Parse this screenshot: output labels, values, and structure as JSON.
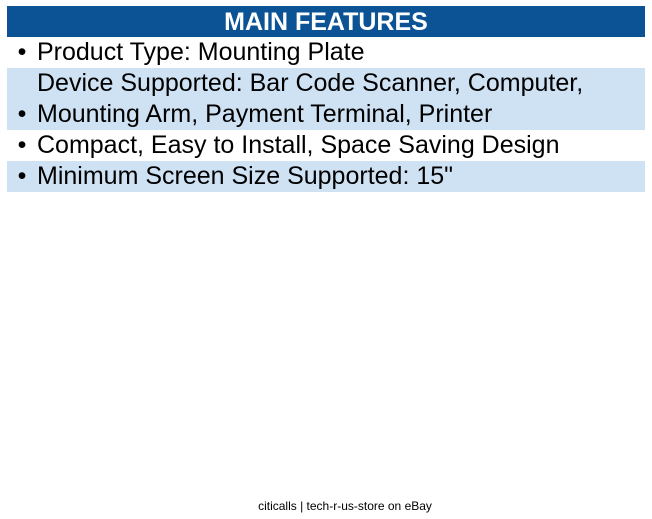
{
  "header": {
    "title": "MAIN FEATURES"
  },
  "features": [
    {
      "bullet": "•",
      "lines": [
        "Product Type: Mounting Plate"
      ]
    },
    {
      "bullet": "•",
      "lines": [
        "Device Supported: Bar Code Scanner, Computer,",
        "Mounting Arm, Payment Terminal, Printer"
      ]
    },
    {
      "bullet": "•",
      "lines": [
        "Compact, Easy to Install, Space Saving Design"
      ]
    },
    {
      "bullet": "•",
      "lines": [
        "Minimum Screen Size Supported: 15\""
      ]
    }
  ],
  "footer": {
    "text": "citicalls | tech-r-us-store on eBay"
  },
  "colors": {
    "header_bg": "#0b5394",
    "alt_row_bg": "#cfe2f3"
  }
}
